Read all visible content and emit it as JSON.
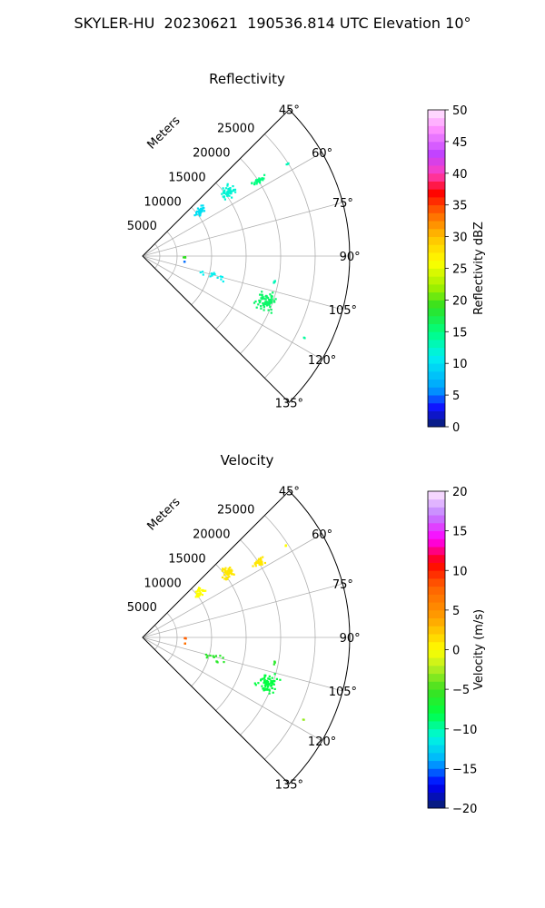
{
  "figure": {
    "title": "SKYLER-HU  20230621  190536.814 UTC Elevation 10°"
  },
  "chart_data": [
    {
      "type": "scatter",
      "projection": "polar-sector",
      "title": "Reflectivity",
      "radial_label": "Meters",
      "radial_ticks": [
        5000,
        10000,
        15000,
        20000,
        25000
      ],
      "radial_tick_labels": [
        "5000",
        "10000",
        "15000",
        "20000",
        "25000"
      ],
      "r_range": [
        0,
        30000
      ],
      "angle_range_deg": [
        45,
        135
      ],
      "angle_ticks": [
        45,
        60,
        75,
        90,
        105,
        120,
        135
      ],
      "angle_tick_labels": [
        "45°",
        "60°",
        "75°",
        "90°",
        "105°",
        "120°",
        "135°"
      ],
      "grid": true,
      "colorbar": {
        "label": "Reflectivity dBZ",
        "min": 0,
        "max": 50,
        "ticks": [
          0,
          5,
          10,
          15,
          20,
          25,
          30,
          35,
          40,
          45,
          50
        ],
        "tick_labels": [
          "0",
          "5",
          "10",
          "15",
          "20",
          "25",
          "30",
          "35",
          "40",
          "45",
          "50"
        ]
      },
      "clusters": [
        {
          "az": 57.5,
          "r": 24800,
          "ra": 0.4,
          "rr": 250,
          "n": 3,
          "value": 13
        },
        {
          "az": 57.0,
          "r": 20000,
          "ra": 1.3,
          "rr": 1000,
          "n": 30,
          "value": 15
        },
        {
          "az": 53.0,
          "r": 15500,
          "ra": 2.6,
          "rr": 900,
          "n": 45,
          "value": 12
        },
        {
          "az": 52.0,
          "r": 10500,
          "ra": 2.6,
          "rr": 700,
          "n": 35,
          "value": 10
        },
        {
          "az": 91.5,
          "r": 6100,
          "ra": 0.5,
          "rr": 150,
          "n": 4,
          "value": 19
        },
        {
          "az": 98.0,
          "r": 6200,
          "ra": 0.6,
          "rr": 150,
          "n": 3,
          "value": 5
        },
        {
          "az": 106.0,
          "r": 11000,
          "ra": 3.0,
          "rr": 1500,
          "n": 14,
          "value": 11
        },
        {
          "az": 101.0,
          "r": 19500,
          "ra": 0.7,
          "rr": 300,
          "n": 5,
          "value": 13
        },
        {
          "az": 110.0,
          "r": 19200,
          "ra": 3.5,
          "rr": 1200,
          "n": 70,
          "value": 16
        },
        {
          "az": 117.0,
          "r": 26200,
          "ra": 0.4,
          "rr": 200,
          "n": 2,
          "value": 14
        }
      ]
    },
    {
      "type": "scatter",
      "projection": "polar-sector",
      "title": "Velocity",
      "radial_label": "Meters",
      "radial_ticks": [
        5000,
        10000,
        15000,
        20000,
        25000
      ],
      "radial_tick_labels": [
        "5000",
        "10000",
        "15000",
        "20000",
        "25000"
      ],
      "r_range": [
        0,
        30000
      ],
      "angle_range_deg": [
        45,
        135
      ],
      "angle_ticks": [
        45,
        60,
        75,
        90,
        105,
        120,
        135
      ],
      "angle_tick_labels": [
        "45°",
        "60°",
        "75°",
        "90°",
        "105°",
        "120°",
        "135°"
      ],
      "grid": true,
      "colorbar": {
        "label": "Velocity (m/s)",
        "min": -20,
        "max": 20,
        "ticks": [
          -20,
          -15,
          -10,
          -5,
          0,
          5,
          10,
          15,
          20
        ],
        "tick_labels": [
          "−20",
          "−15",
          "−10",
          "−5",
          "0",
          "5",
          "10",
          "15",
          "20"
        ]
      },
      "clusters": [
        {
          "az": 57.5,
          "r": 24800,
          "ra": 0.4,
          "rr": 250,
          "n": 3,
          "value": 0
        },
        {
          "az": 57.0,
          "r": 20000,
          "ra": 1.3,
          "rr": 1000,
          "n": 30,
          "value": 1
        },
        {
          "az": 53.0,
          "r": 15500,
          "ra": 2.6,
          "rr": 900,
          "n": 45,
          "value": 1
        },
        {
          "az": 52.0,
          "r": 10500,
          "ra": 2.6,
          "rr": 700,
          "n": 35,
          "value": 0
        },
        {
          "az": 91.5,
          "r": 6100,
          "ra": 0.5,
          "rr": 150,
          "n": 4,
          "value": 8
        },
        {
          "az": 98.0,
          "r": 6200,
          "ra": 0.6,
          "rr": 150,
          "n": 3,
          "value": 7
        },
        {
          "az": 106.0,
          "r": 11000,
          "ra": 3.0,
          "rr": 1500,
          "n": 14,
          "value": -6
        },
        {
          "az": 101.0,
          "r": 19500,
          "ra": 0.7,
          "rr": 300,
          "n": 5,
          "value": -6
        },
        {
          "az": 110.0,
          "r": 19200,
          "ra": 3.5,
          "rr": 1200,
          "n": 70,
          "value": -8
        },
        {
          "az": 117.0,
          "r": 26200,
          "ra": 0.4,
          "rr": 200,
          "n": 2,
          "value": -3
        }
      ]
    }
  ]
}
